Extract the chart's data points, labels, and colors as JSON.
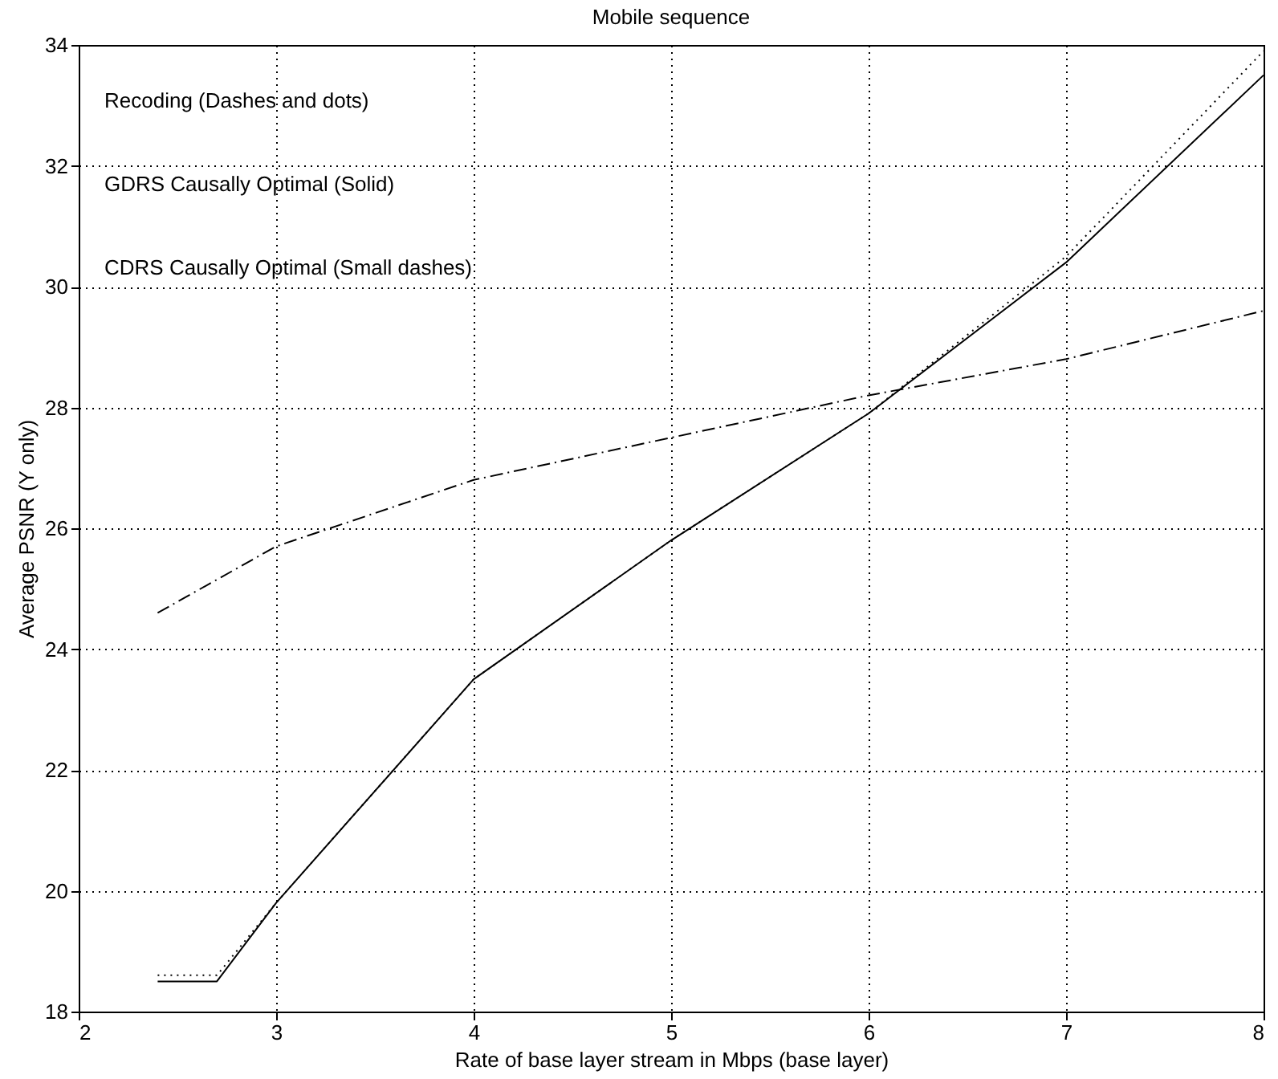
{
  "chart_data": {
    "type": "line",
    "title": "Mobile sequence",
    "xlabel": "Rate of base layer stream in Mbps (base layer)",
    "ylabel": "Average PSNR (Y only)",
    "xlim": [
      2,
      8
    ],
    "xticks": [
      2,
      3,
      4,
      5,
      6,
      7,
      8
    ],
    "ylim": [
      18,
      34
    ],
    "yticks": [
      18,
      20,
      22,
      24,
      26,
      28,
      30,
      32,
      34
    ],
    "grid": true,
    "marker": "none",
    "annotations": [
      "Recoding (Dashes and dots)",
      "GDRS Causally Optimal (Solid)",
      "CDRS Causally Optimal (Small dashes)"
    ],
    "series": [
      {
        "color": "#000000",
        "line_style": "dashdot",
        "x": [
          2.4,
          3,
          4,
          5,
          6,
          7,
          8
        ],
        "values": [
          24.6,
          25.7,
          26.8,
          27.5,
          28.2,
          28.8,
          29.6
        ]
      },
      {
        "color": "#000000",
        "line_style": "solid",
        "x": [
          2.4,
          2.7,
          3,
          4,
          5,
          6,
          7,
          8
        ],
        "values": [
          18.5,
          18.5,
          19.8,
          23.5,
          25.8,
          27.9,
          30.4,
          33.5
        ]
      },
      {
        "color": "#000000",
        "line_style": "dotted",
        "x": [
          2.4,
          2.7,
          3,
          4,
          5,
          6,
          7,
          8
        ],
        "values": [
          18.6,
          18.6,
          19.8,
          23.5,
          25.8,
          27.9,
          30.5,
          33.9
        ]
      }
    ]
  }
}
